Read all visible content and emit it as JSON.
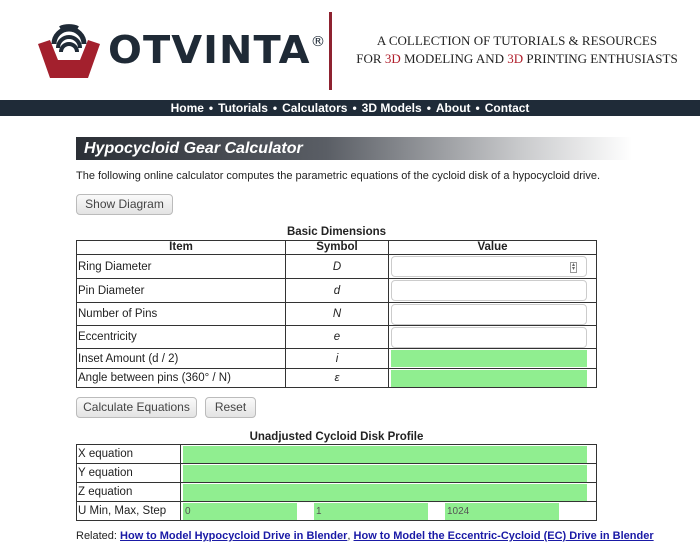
{
  "header": {
    "brand": "OTVINTA",
    "registered": "®",
    "tagline_line1": "A COLLECTION OF TUTORIALS & RESOURCES",
    "tagline_line2_parts": [
      "FOR ",
      "3D",
      " MODELING AND ",
      "3D",
      " PRINTING ENTHUSIASTS"
    ]
  },
  "nav": {
    "items": [
      "Home",
      "Tutorials",
      "Calculators",
      "3D Models",
      "About",
      "Contact"
    ]
  },
  "page": {
    "title": "Hypocycloid Gear Calculator",
    "description": "The following online calculator computes the parametric equations of the cycloid disk of a hypocycloid drive.",
    "show_diagram": "Show Diagram"
  },
  "basic": {
    "caption": "Basic Dimensions",
    "headers": [
      "Item",
      "Symbol",
      "Value"
    ],
    "rows": [
      {
        "item": "Ring Diameter",
        "symbol": "D",
        "value": ""
      },
      {
        "item": "Pin Diameter",
        "symbol": "d",
        "value": ""
      },
      {
        "item": "Number of Pins",
        "symbol": "N",
        "value": ""
      },
      {
        "item": "Eccentricity",
        "symbol": "e",
        "value": ""
      },
      {
        "item": "Inset Amount (d / 2)",
        "symbol": "i",
        "value": ""
      },
      {
        "item": "Angle between pins (360° / N)",
        "symbol": "ε",
        "value": ""
      }
    ]
  },
  "buttons": {
    "calculate": "Calculate Equations",
    "reset": "Reset"
  },
  "profile": {
    "caption": "Unadjusted Cycloid Disk Profile",
    "rows": [
      {
        "label": "X equation",
        "value": ""
      },
      {
        "label": "Y equation",
        "value": ""
      },
      {
        "label": "Z equation",
        "value": ""
      }
    ],
    "u_label": "U Min, Max, Step",
    "u_min": "0",
    "u_max": "1",
    "u_step": "1024"
  },
  "related": {
    "label": "Related: ",
    "link1": "How to Model Hypocycloid Drive in Blender",
    "sep": ", ",
    "link2": "How to Model the Eccentric-Cycloid (EC) Drive in Blender"
  },
  "colors": {
    "nav_bg": "#1f2b38",
    "accent_red": "#8e2230",
    "computed_field": "#90ee90",
    "link": "#1a1aa6"
  }
}
